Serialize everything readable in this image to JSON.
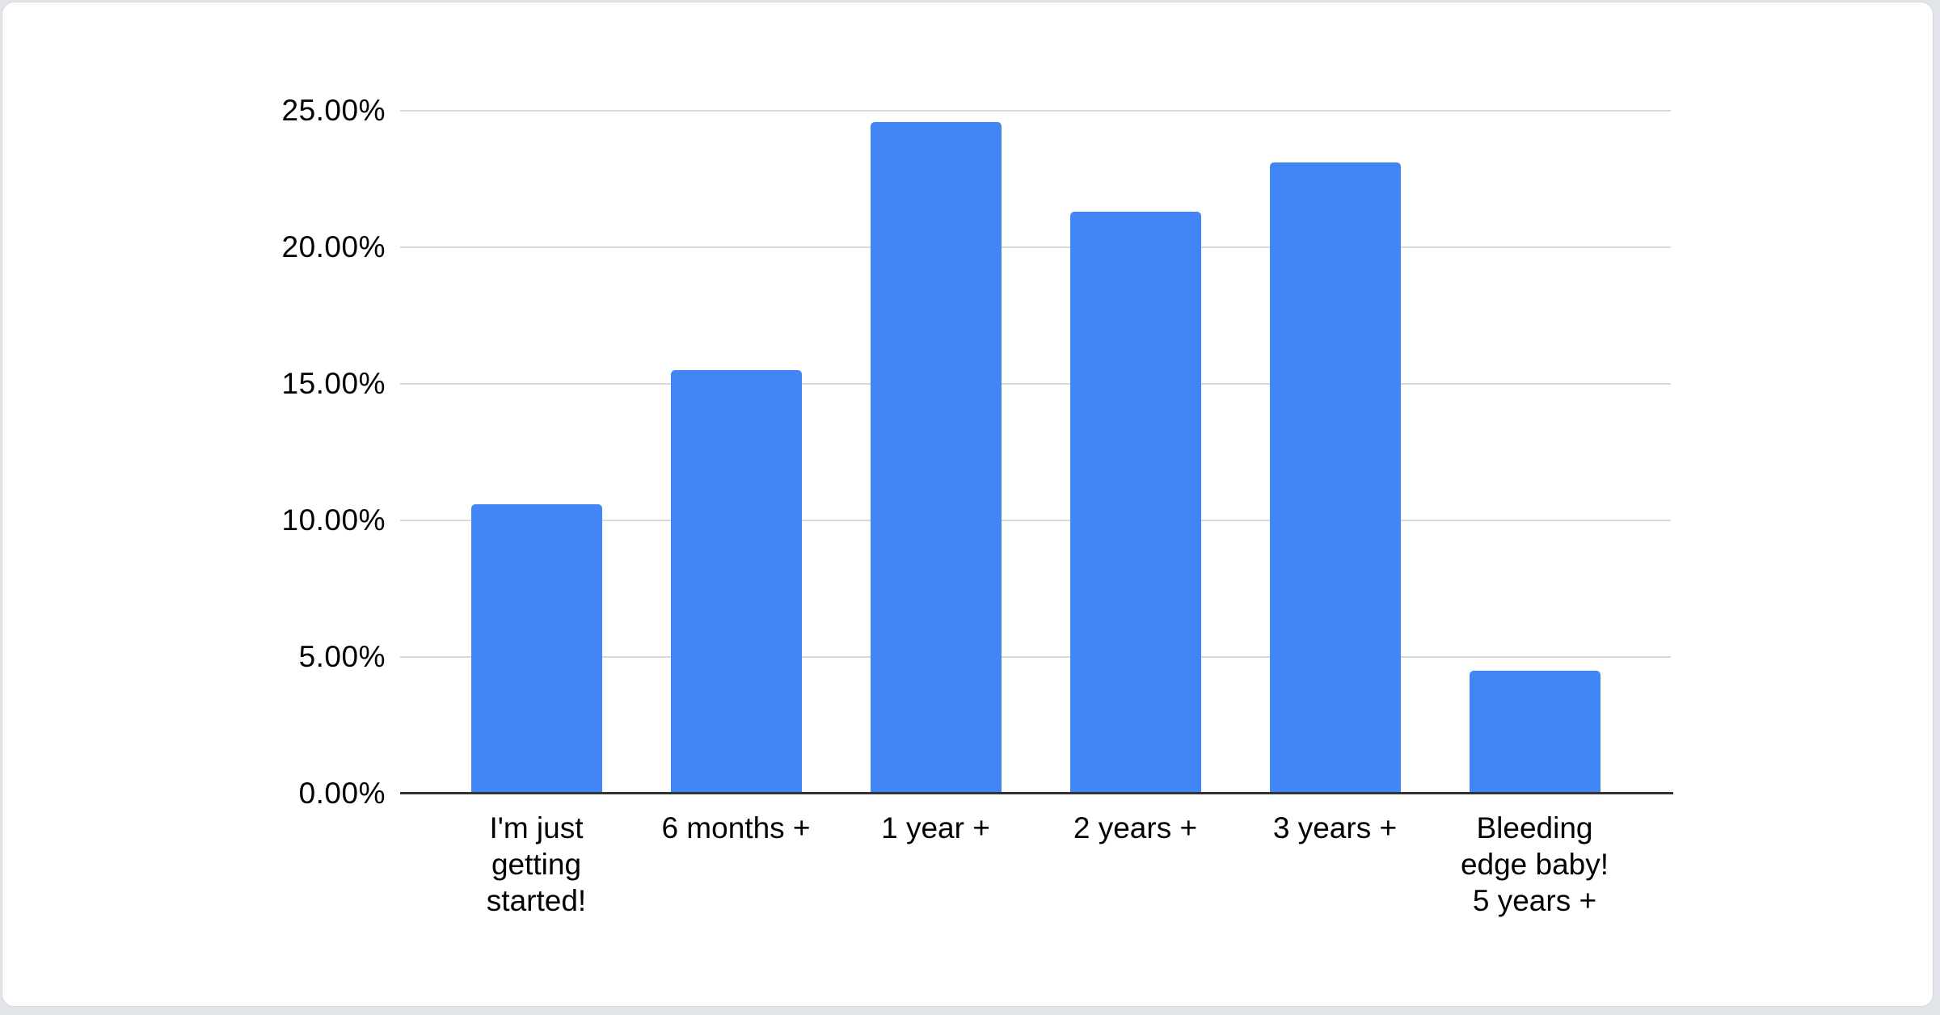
{
  "page": {
    "background_color": "#E2E5E9",
    "card_background": "#FFFFFF",
    "card_border_color": "#D6D9DC"
  },
  "chart_data": {
    "type": "bar",
    "title": "",
    "xlabel": "",
    "ylabel": "",
    "unit": "%",
    "categories": [
      "I'm just getting started!",
      "6 months +",
      "1 year +",
      "2 years +",
      "3 years +",
      "Bleeding edge baby! 5 years +"
    ],
    "category_display_lines": [
      [
        "I'm just",
        "getting",
        "started!"
      ],
      [
        "6 months +"
      ],
      [
        "1 year +"
      ],
      [
        "2 years +"
      ],
      [
        "3 years +"
      ],
      [
        "Bleeding",
        "edge baby!",
        "5 years +"
      ]
    ],
    "values": [
      10.6,
      15.5,
      24.6,
      21.3,
      23.1,
      4.5
    ],
    "ylim": [
      0,
      25
    ],
    "yticks": [
      {
        "value": 0,
        "label": "0.00%"
      },
      {
        "value": 5,
        "label": "5.00%"
      },
      {
        "value": 10,
        "label": "10.00%"
      },
      {
        "value": 15,
        "label": "15.00%"
      },
      {
        "value": 20,
        "label": "20.00%"
      },
      {
        "value": 25,
        "label": "25.00%"
      }
    ],
    "grid": "horizontal",
    "legend": "none",
    "colors": {
      "bar": "#4285F4",
      "gridline": "#D9D9D9",
      "axis_line": "#333333",
      "label_text": "#000000"
    }
  }
}
